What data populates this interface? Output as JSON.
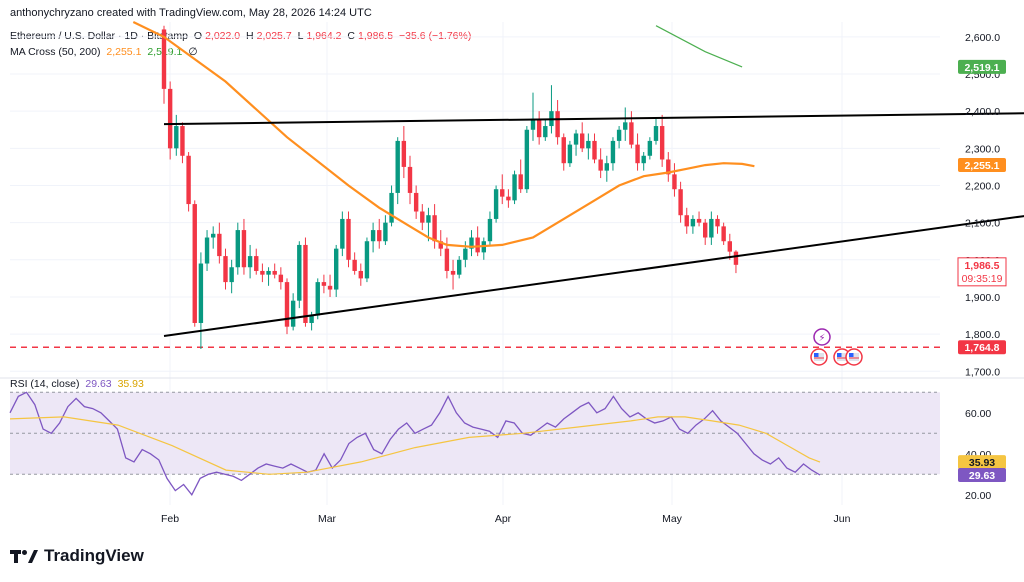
{
  "header": {
    "attribution": "anthonychryzano created with TradingView.com, May 28, 2026 14:24 UTC"
  },
  "legend": {
    "symbol": "Ethereum / U.S. Dollar · 1D · Bitstamp",
    "o_label": "O",
    "o_value": "2,022.0",
    "h_label": "H",
    "h_value": "2,025.7",
    "l_label": "L",
    "l_value": "1,964.2",
    "c_label": "C",
    "c_value": "1,986.5",
    "change": "−35.6 (−1.76%)",
    "ma_label": "MA Cross (50, 200)",
    "ma_fast": "2,255.1",
    "ma_slow": "2,519.1",
    "ma_extra": "∅",
    "rsi_label": "RSI (14, close)",
    "rsi_value": "29.63",
    "rsi_ma_value": "35.93"
  },
  "colors": {
    "up": "#089981",
    "down": "#f23645",
    "ma_fast": "#ff8f1f",
    "ma_slow": "#4caf50",
    "rsi": "#7e57c2",
    "rsi_ma": "#f5c542",
    "support": "#f23645",
    "trendline": "#000000",
    "rsi_band": "#ede7f6"
  },
  "price_axis": {
    "ticks": [
      "2,600.0",
      "2,500.0",
      "2,400.0",
      "2,300.0",
      "2,200.0",
      "2,100.0",
      "2,000.0",
      "1,900.0",
      "1,800.0",
      "1,700.0"
    ],
    "tick_values": [
      2600,
      2500,
      2400,
      2300,
      2200,
      2100,
      2000,
      1900,
      1800,
      1700
    ],
    "label_ma_slow": "2,519.1",
    "label_ma_fast": "2,255.1",
    "label_last": "1,986.5",
    "label_countdown": "09:35:19",
    "label_support": "1,764.8"
  },
  "rsi_axis": {
    "ticks": [
      "60.00",
      "40.00",
      "20.00"
    ],
    "tick_values": [
      60,
      40,
      20
    ],
    "label_rsi_ma": "35.93",
    "label_rsi": "29.63"
  },
  "time_axis": {
    "labels": [
      "Feb",
      "Mar",
      "Apr",
      "May",
      "Jun"
    ]
  },
  "footer": {
    "brand": "TradingView",
    "logo": "tradingview-logo"
  },
  "chart_data": {
    "type": "candlestick",
    "x_start": "2026-01-26",
    "price_range": [
      1690,
      2640
    ],
    "rsi_range": [
      15,
      75
    ],
    "support_level": 1764.8,
    "upper_trendline": [
      [
        "2026-01-26",
        2365
      ],
      [
        "2026-06-18",
        2395
      ]
    ],
    "lower_trendline": [
      [
        "2026-01-26",
        1795
      ],
      [
        "2026-06-18",
        2125
      ]
    ],
    "candles": [
      [
        2620,
        2630,
        2420,
        2460
      ],
      [
        2460,
        2480,
        2270,
        2300
      ],
      [
        2300,
        2390,
        2280,
        2360
      ],
      [
        2360,
        2370,
        2260,
        2280
      ],
      [
        2280,
        2290,
        2130,
        2150
      ],
      [
        2150,
        2160,
        1820,
        1830
      ],
      [
        1830,
        2020,
        1760,
        1990
      ],
      [
        1990,
        2080,
        1970,
        2060
      ],
      [
        2060,
        2090,
        2030,
        2070
      ],
      [
        2070,
        2100,
        1990,
        2010
      ],
      [
        2010,
        2030,
        1920,
        1940
      ],
      [
        1940,
        2000,
        1910,
        1980
      ],
      [
        1980,
        2100,
        1960,
        2080
      ],
      [
        2080,
        2110,
        1960,
        1980
      ],
      [
        1980,
        2040,
        1950,
        2010
      ],
      [
        2010,
        2030,
        1960,
        1970
      ],
      [
        1970,
        1990,
        1940,
        1960
      ],
      [
        1960,
        1980,
        1930,
        1970
      ],
      [
        1970,
        1990,
        1950,
        1960
      ],
      [
        1960,
        1980,
        1920,
        1940
      ],
      [
        1940,
        1950,
        1800,
        1820
      ],
      [
        1820,
        1910,
        1810,
        1890
      ],
      [
        1890,
        2050,
        1870,
        2040
      ],
      [
        2040,
        2060,
        1820,
        1830
      ],
      [
        1830,
        1860,
        1810,
        1850
      ],
      [
        1850,
        1950,
        1840,
        1940
      ],
      [
        1940,
        1960,
        1910,
        1930
      ],
      [
        1930,
        1960,
        1900,
        1920
      ],
      [
        1920,
        2040,
        1900,
        2030
      ],
      [
        2030,
        2130,
        2010,
        2110
      ],
      [
        2110,
        2130,
        1980,
        2000
      ],
      [
        2000,
        2020,
        1960,
        1970
      ],
      [
        1970,
        1990,
        1930,
        1950
      ],
      [
        1950,
        2060,
        1940,
        2050
      ],
      [
        2050,
        2100,
        2020,
        2080
      ],
      [
        2080,
        2110,
        2030,
        2050
      ],
      [
        2050,
        2120,
        2040,
        2100
      ],
      [
        2100,
        2200,
        2090,
        2180
      ],
      [
        2180,
        2330,
        2150,
        2320
      ],
      [
        2320,
        2360,
        2220,
        2250
      ],
      [
        2250,
        2280,
        2150,
        2180
      ],
      [
        2180,
        2200,
        2110,
        2130
      ],
      [
        2130,
        2150,
        2080,
        2100
      ],
      [
        2100,
        2140,
        2050,
        2120
      ],
      [
        2120,
        2150,
        2030,
        2050
      ],
      [
        2050,
        2080,
        2010,
        2030
      ],
      [
        2030,
        2060,
        1950,
        1970
      ],
      [
        1970,
        2000,
        1920,
        1960
      ],
      [
        1960,
        2010,
        1950,
        2000
      ],
      [
        2000,
        2050,
        1980,
        2030
      ],
      [
        2030,
        2080,
        2010,
        2060
      ],
      [
        2060,
        2090,
        2010,
        2020
      ],
      [
        2020,
        2060,
        2000,
        2050
      ],
      [
        2050,
        2130,
        2040,
        2110
      ],
      [
        2110,
        2200,
        2100,
        2190
      ],
      [
        2190,
        2230,
        2150,
        2170
      ],
      [
        2170,
        2190,
        2140,
        2160
      ],
      [
        2160,
        2240,
        2150,
        2230
      ],
      [
        2230,
        2270,
        2180,
        2190
      ],
      [
        2190,
        2360,
        2180,
        2350
      ],
      [
        2350,
        2450,
        2320,
        2380
      ],
      [
        2380,
        2400,
        2310,
        2330
      ],
      [
        2330,
        2380,
        2320,
        2360
      ],
      [
        2360,
        2470,
        2340,
        2400
      ],
      [
        2400,
        2430,
        2310,
        2330
      ],
      [
        2330,
        2340,
        2240,
        2260
      ],
      [
        2260,
        2320,
        2250,
        2310
      ],
      [
        2310,
        2350,
        2280,
        2340
      ],
      [
        2340,
        2370,
        2290,
        2300
      ],
      [
        2300,
        2340,
        2270,
        2320
      ],
      [
        2320,
        2340,
        2260,
        2270
      ],
      [
        2270,
        2300,
        2220,
        2240
      ],
      [
        2240,
        2280,
        2210,
        2260
      ],
      [
        2260,
        2330,
        2240,
        2320
      ],
      [
        2320,
        2360,
        2300,
        2350
      ],
      [
        2350,
        2410,
        2320,
        2370
      ],
      [
        2370,
        2400,
        2300,
        2310
      ],
      [
        2310,
        2340,
        2240,
        2260
      ],
      [
        2260,
        2290,
        2240,
        2280
      ],
      [
        2280,
        2330,
        2270,
        2320
      ],
      [
        2320,
        2380,
        2310,
        2360
      ],
      [
        2360,
        2390,
        2250,
        2270
      ],
      [
        2270,
        2290,
        2210,
        2230
      ],
      [
        2230,
        2260,
        2170,
        2190
      ],
      [
        2190,
        2210,
        2100,
        2120
      ],
      [
        2120,
        2140,
        2070,
        2090
      ],
      [
        2090,
        2120,
        2070,
        2110
      ],
      [
        2110,
        2130,
        2090,
        2100
      ],
      [
        2100,
        2110,
        2040,
        2060
      ],
      [
        2060,
        2130,
        2040,
        2110
      ],
      [
        2110,
        2120,
        2070,
        2090
      ],
      [
        2090,
        2100,
        2040,
        2050
      ],
      [
        2050,
        2070,
        2000,
        2022
      ],
      [
        2022,
        2025.7,
        1964.2,
        1986.5
      ]
    ],
    "ma_fast_series": [
      [
        -5,
        2640
      ],
      [
        0,
        2600
      ],
      [
        10,
        2480
      ],
      [
        20,
        2330
      ],
      [
        30,
        2200
      ],
      [
        35,
        2140
      ],
      [
        40,
        2090
      ],
      [
        43,
        2060
      ],
      [
        46,
        2040
      ],
      [
        50,
        2035
      ],
      [
        55,
        2040
      ],
      [
        60,
        2060
      ],
      [
        65,
        2110
      ],
      [
        70,
        2160
      ],
      [
        74,
        2200
      ],
      [
        78,
        2225
      ],
      [
        82,
        2235
      ],
      [
        85,
        2245
      ],
      [
        88,
        2255
      ],
      [
        91,
        2260
      ],
      [
        94,
        2258
      ],
      [
        96,
        2252
      ]
    ],
    "ma_slow_series": [
      [
        80,
        2630
      ],
      [
        88,
        2560
      ],
      [
        94,
        2519.1
      ]
    ],
    "rsi_series": [
      60,
      68,
      70,
      64,
      52,
      50,
      55,
      63,
      67,
      63,
      62,
      60,
      56,
      52,
      38,
      36,
      42,
      40,
      37,
      28,
      22,
      25,
      20,
      28,
      30,
      31,
      30,
      29,
      27,
      30,
      33,
      35,
      34,
      33,
      35,
      33,
      31,
      32,
      40,
      33,
      37,
      45,
      48,
      50,
      42,
      40,
      47,
      52,
      55,
      50,
      52,
      54,
      60,
      68,
      60,
      55,
      53,
      52,
      51,
      48,
      56,
      55,
      50,
      49,
      52,
      55,
      53,
      57,
      60,
      63,
      65,
      60,
      62,
      68,
      62,
      58,
      60,
      57,
      55,
      56,
      58,
      52,
      50,
      54,
      57,
      61,
      56,
      53,
      50,
      45,
      40,
      37,
      35,
      38,
      33,
      31,
      35,
      32,
      29.63
    ],
    "rsi_ma_series": [
      [
        0,
        57
      ],
      [
        10,
        58
      ],
      [
        20,
        54
      ],
      [
        30,
        44
      ],
      [
        40,
        32
      ],
      [
        48,
        30
      ],
      [
        55,
        31
      ],
      [
        65,
        36
      ],
      [
        75,
        43
      ],
      [
        85,
        48
      ],
      [
        95,
        50
      ],
      [
        105,
        53
      ],
      [
        115,
        56
      ],
      [
        120,
        58
      ],
      [
        125,
        58
      ],
      [
        130,
        56
      ],
      [
        135,
        54
      ],
      [
        140,
        50
      ],
      [
        144,
        44
      ],
      [
        148,
        38
      ],
      [
        150,
        35.93
      ]
    ]
  }
}
